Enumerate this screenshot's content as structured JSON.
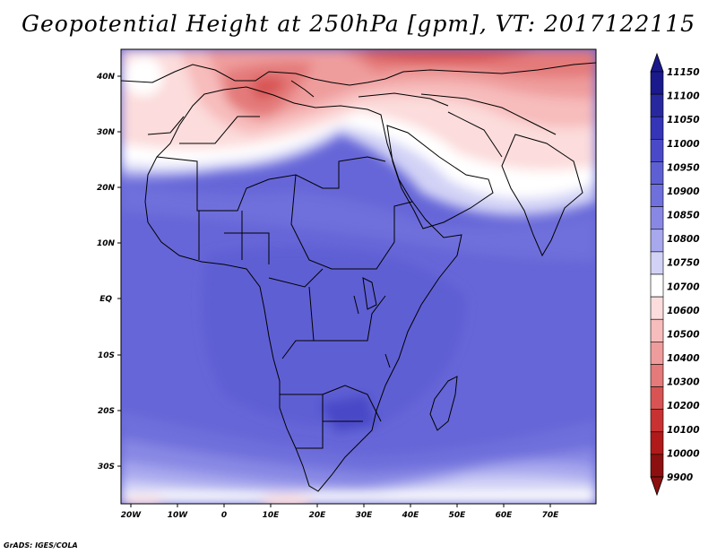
{
  "title": "Geopotential Height at 250hPa [gpm], VT: 2017122115",
  "credit": "GrADS: IGES/COLA",
  "map": {
    "lat_ticks": [
      "40N",
      "30N",
      "20N",
      "10N",
      "EQ",
      "10S",
      "20S",
      "30S"
    ],
    "lon_ticks": [
      "20W",
      "10W",
      "0",
      "10E",
      "20E",
      "30E",
      "40E",
      "50E",
      "60E",
      "70E"
    ]
  },
  "colorbar": {
    "levels": [
      "11150",
      "11100",
      "11050",
      "11000",
      "10950",
      "10900",
      "10850",
      "10800",
      "10750",
      "10700",
      "10600",
      "10500",
      "10400",
      "10300",
      "10200",
      "10100",
      "10000",
      "9900"
    ],
    "colors": [
      "#1a1a8c",
      "#28289e",
      "#3535b8",
      "#4a4ac8",
      "#5f5fd4",
      "#7070dc",
      "#8888e4",
      "#a8a8ee",
      "#d2d2f6",
      "#ffffff",
      "#fcdcdc",
      "#f7bcbc",
      "#ef9c9c",
      "#e47a7a",
      "#d85454",
      "#c83232",
      "#b01a1a",
      "#8c1010"
    ]
  }
}
